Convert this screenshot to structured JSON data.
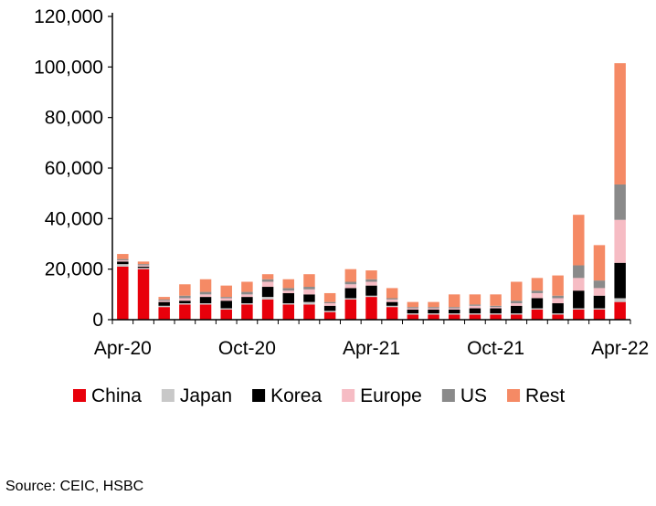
{
  "chart_data": {
    "type": "bar",
    "stacked": true,
    "title": "",
    "xlabel": "",
    "ylabel": "",
    "ylim": [
      0,
      120000
    ],
    "yticks": [
      "0",
      "20,000",
      "40,000",
      "60,000",
      "80,000",
      "100,000",
      "120,000"
    ],
    "ytick_values": [
      0,
      20000,
      40000,
      60000,
      80000,
      100000,
      120000
    ],
    "xtick_labels": [
      {
        "index": 0,
        "label": "Apr-20"
      },
      {
        "index": 6,
        "label": "Oct-20"
      },
      {
        "index": 12,
        "label": "Apr-21"
      },
      {
        "index": 18,
        "label": "Oct-21"
      },
      {
        "index": 24,
        "label": "Apr-22"
      }
    ],
    "categories": [
      "Apr-20",
      "May-20",
      "Jun-20",
      "Jul-20",
      "Aug-20",
      "Sep-20",
      "Oct-20",
      "Nov-20",
      "Dec-20",
      "Jan-21",
      "Feb-21",
      "Mar-21",
      "Apr-21",
      "May-21",
      "Jun-21",
      "Jul-21",
      "Aug-21",
      "Sep-21",
      "Oct-21",
      "Nov-21",
      "Dec-21",
      "Jan-22",
      "Feb-22",
      "Mar-22",
      "Apr-22"
    ],
    "series": [
      {
        "name": "China",
        "color": "#e8000b",
        "values": [
          21000,
          20000,
          5000,
          6000,
          6000,
          4000,
          6000,
          8000,
          6000,
          6000,
          3000,
          8000,
          9000,
          5000,
          2000,
          2000,
          2000,
          2000,
          2000,
          2000,
          4000,
          2000,
          4000,
          4000,
          7000
        ]
      },
      {
        "name": "Japan",
        "color": "#c8c8c8",
        "values": [
          1000,
          500,
          500,
          500,
          500,
          500,
          500,
          1000,
          500,
          1000,
          500,
          500,
          500,
          500,
          500,
          500,
          500,
          500,
          500,
          500,
          500,
          500,
          500,
          500,
          1500
        ]
      },
      {
        "name": "Korea",
        "color": "#000000",
        "values": [
          1000,
          500,
          1500,
          1000,
          2500,
          3000,
          2500,
          4000,
          4000,
          3000,
          2000,
          4000,
          4000,
          1500,
          1500,
          1500,
          1500,
          2000,
          2000,
          3000,
          4000,
          4000,
          7000,
          5000,
          14000
        ]
      },
      {
        "name": "Europe",
        "color": "#f6bcc4",
        "values": [
          500,
          500,
          500,
          1000,
          1000,
          1000,
          1000,
          2000,
          1000,
          2000,
          1000,
          1500,
          1500,
          1000,
          500,
          500,
          500,
          1000,
          500,
          1000,
          2000,
          2000,
          5000,
          3000,
          17000
        ]
      },
      {
        "name": "US",
        "color": "#8a8a8a",
        "values": [
          500,
          500,
          500,
          1000,
          1000,
          500,
          1000,
          1000,
          1000,
          1000,
          500,
          1000,
          1000,
          500,
          500,
          500,
          500,
          500,
          500,
          1000,
          1000,
          1000,
          5000,
          3000,
          14000
        ]
      },
      {
        "name": "Rest",
        "color": "#f58a65",
        "values": [
          2000,
          1000,
          1000,
          4500,
          5000,
          4500,
          4000,
          2000,
          3500,
          5000,
          3500,
          5000,
          3500,
          4000,
          2000,
          2000,
          5000,
          4000,
          4500,
          7500,
          5000,
          8000,
          20000,
          14000,
          48000
        ]
      }
    ],
    "legend_position": "bottom",
    "grid": false
  },
  "source_label": "Source:",
  "source_text": "CEIC, HSBC"
}
